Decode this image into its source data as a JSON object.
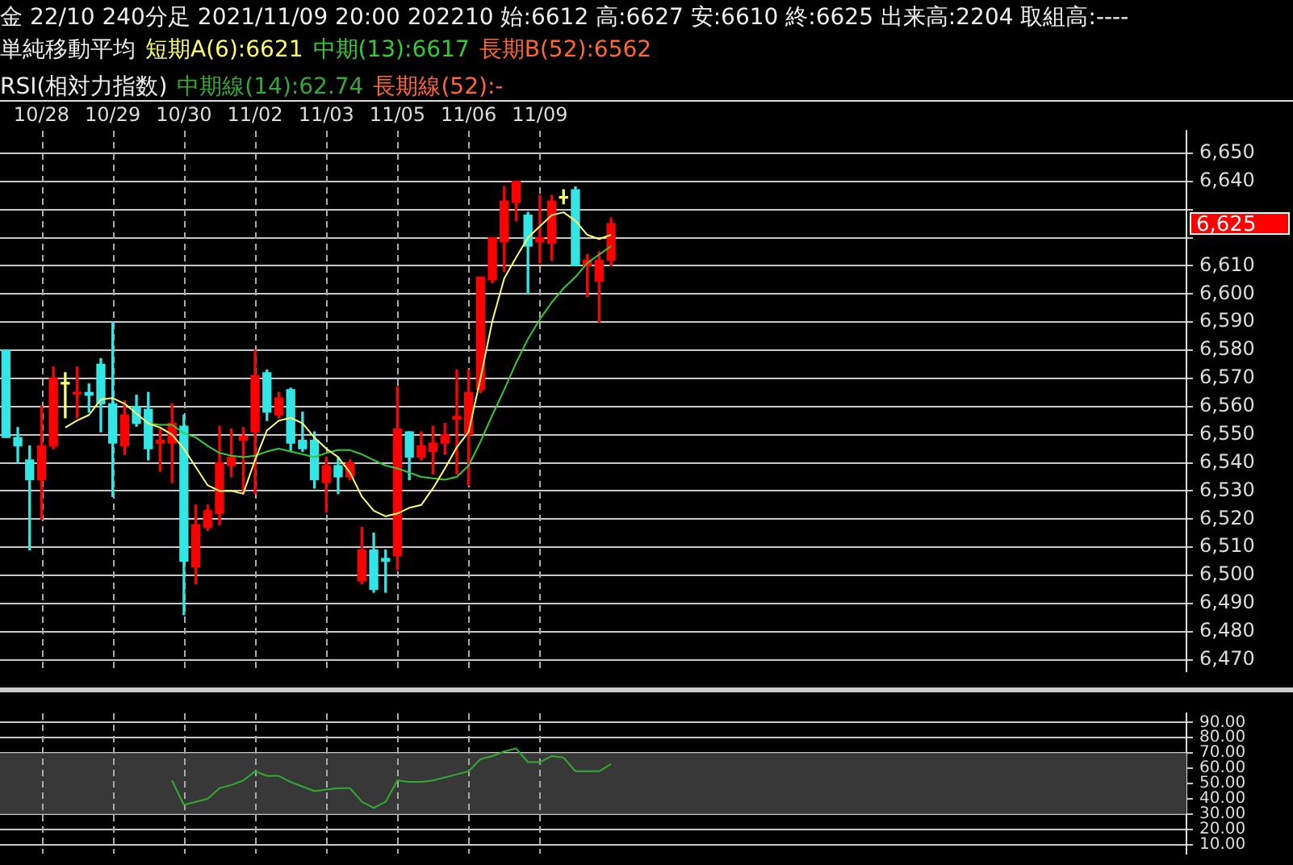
{
  "chart_data": [
    {
      "type": "candlestick",
      "title": "金 22/10 240分足 2021/11/09 20:00 202210 始:6612 高:6627 安:6610 終:6625 出来高:2204 取組高:----",
      "legend_title": "単純移動平均",
      "legend": "top left",
      "marker": "none",
      "grid": true,
      "categories": [
        null,
        null,
        null,
        "10/28",
        null,
        null,
        null,
        null,
        null,
        "10/29",
        null,
        null,
        null,
        null,
        null,
        "10/30",
        null,
        null,
        null,
        null,
        null,
        "11/02",
        null,
        null,
        null,
        null,
        null,
        "11/03",
        null,
        null,
        null,
        null,
        null,
        "11/05",
        null,
        null,
        null,
        null,
        null,
        "11/06",
        null,
        null,
        null,
        null,
        null,
        "11/09",
        null,
        null,
        null,
        null,
        null,
        null,
        null,
        null,
        null,
        null,
        null,
        null,
        null,
        null,
        null,
        null,
        null,
        null,
        null,
        null,
        null,
        null,
        null,
        null,
        null,
        null,
        null,
        null,
        null,
        null,
        null,
        null,
        null,
        null,
        null,
        null,
        null,
        null,
        null,
        null,
        null,
        null,
        null,
        null,
        null,
        null,
        null,
        null,
        null,
        null,
        null,
        null,
        null,
        null
      ],
      "ohlc": [
        [
          6580,
          6580,
          6549,
          6549
        ],
        [
          6549,
          6552.5,
          6540,
          6546
        ],
        [
          6541,
          6546,
          6509,
          6534
        ],
        [
          6534,
          6560,
          6520,
          6546
        ],
        [
          6546,
          6574,
          6545,
          6570
        ],
        [
          6568,
          6572,
          6556,
          6568
        ],
        [
          6564.5,
          6574,
          6556,
          6565
        ],
        [
          6565,
          6568,
          6558,
          6564
        ],
        [
          6575,
          6577,
          6551,
          6561
        ],
        [
          6561,
          6590,
          6528,
          6547
        ],
        [
          6546,
          6562,
          6543,
          6557
        ],
        [
          6560,
          6564,
          6553,
          6554
        ],
        [
          6559,
          6565,
          6541,
          6545
        ],
        [
          6547,
          6552,
          6537,
          6548
        ],
        [
          6547,
          6561,
          6533,
          6554
        ],
        [
          6553,
          6557,
          6486,
          6505
        ],
        [
          6503,
          6525,
          6497,
          6518
        ],
        [
          6517,
          6525,
          6516,
          6523
        ],
        [
          6522,
          6553,
          6518,
          6540
        ],
        [
          6539,
          6552,
          6535,
          6542
        ],
        [
          6548,
          6552.5,
          6529,
          6549.5
        ],
        [
          6551,
          6580,
          6529,
          6571
        ],
        [
          6572,
          6573,
          6555,
          6558
        ],
        [
          6557,
          6565,
          6556,
          6563
        ],
        [
          6566,
          6566.5,
          6544,
          6547
        ],
        [
          6548,
          6558,
          6544,
          6545
        ],
        [
          6548,
          6551,
          6531,
          6534
        ],
        [
          6533,
          6542,
          6522.5,
          6539
        ],
        [
          6539,
          6542,
          6529,
          6535
        ],
        [
          6535,
          6541,
          6534,
          6540
        ],
        [
          6498,
          6517,
          6497,
          6509
        ],
        [
          6509,
          6515,
          6494,
          6495
        ],
        [
          6506,
          6509,
          6494,
          6505
        ],
        [
          6507,
          6567,
          6502,
          6552
        ],
        [
          6551,
          6551,
          6534,
          6542
        ],
        [
          6542,
          6551,
          6541,
          6546
        ],
        [
          6544,
          6553,
          6536,
          6547
        ],
        [
          6547,
          6554,
          6543,
          6550
        ],
        [
          6555.5,
          6573,
          6536,
          6556.5
        ],
        [
          6550,
          6573,
          6532,
          6565
        ],
        [
          6566,
          6606,
          6565,
          6606
        ],
        [
          6605,
          6620,
          6604,
          6620
        ],
        [
          6618.5,
          6638,
          6608,
          6633
        ],
        [
          6632.5,
          6640,
          6626,
          6640
        ],
        [
          6628,
          6629,
          6600,
          6617
        ],
        [
          6618.5,
          6635,
          6611,
          6620
        ],
        [
          6618,
          6635,
          6612,
          6633
        ],
        [
          6634,
          6637,
          6632,
          6634
        ],
        [
          6637,
          6638,
          6610,
          6610
        ],
        [
          6610,
          6614,
          6599,
          6612
        ],
        [
          6604.5,
          6615,
          6590,
          6612
        ],
        [
          6612,
          6627,
          6610,
          6625
        ],
        null,
        null,
        null,
        null,
        null,
        null,
        null,
        null,
        null,
        null,
        null,
        null,
        null,
        null,
        null,
        null,
        null,
        null,
        null,
        null,
        null,
        null,
        null,
        null,
        null,
        null,
        null,
        null,
        null,
        null,
        null,
        null,
        null,
        null,
        null,
        null,
        null,
        null,
        null,
        null,
        null,
        null,
        null,
        null,
        null,
        null,
        null,
        null
      ],
      "colors": [
        "#33e6e6",
        "#33e6e6",
        "#33e6e6",
        "#ff0000",
        "#ff0000",
        "#ffff66",
        "#ff0000",
        "#33e6e6",
        "#33e6e6",
        "#33e6e6",
        "#ff0000",
        "#33e6e6",
        "#33e6e6",
        "#ff0000",
        "#ff0000",
        "#33e6e6",
        "#ff0000",
        "#ff0000",
        "#ff0000",
        "#ff0000",
        "#ff0000",
        "#ff0000",
        "#33e6e6",
        "#ff0000",
        "#33e6e6",
        "#33e6e6",
        "#33e6e6",
        "#ff0000",
        "#33e6e6",
        "#ff0000",
        "#ff0000",
        "#33e6e6",
        "#33e6e6",
        "#ff0000",
        "#33e6e6",
        "#ff0000",
        "#ff0000",
        "#ff0000",
        "#ff0000",
        "#ff0000",
        "#ff0000",
        "#ff0000",
        "#ff0000",
        "#ff0000",
        "#33e6e6",
        "#ff0000",
        "#ff0000",
        "#ffff66",
        "#33e6e6",
        "#ff0000",
        "#ff0000",
        "#ff0000",
        null,
        null,
        null,
        null,
        null,
        null,
        null,
        null,
        null,
        null,
        null,
        null,
        null,
        null,
        null,
        null,
        null,
        null,
        null,
        null,
        null,
        null,
        null,
        null,
        null,
        null,
        null,
        null,
        null,
        null,
        null,
        null,
        null,
        null,
        null,
        null,
        null,
        null,
        null,
        null,
        null,
        null,
        null,
        null,
        null,
        null,
        null,
        null
      ],
      "series": [
        {
          "name": "短期A(6):6621",
          "type": "line",
          "color": "#ffff66",
          "values": [
            null,
            null,
            null,
            null,
            null,
            6552.5,
            6555,
            6557,
            6562.5,
            6563,
            6561,
            6557.5,
            6554,
            6552.5,
            6550,
            6545,
            6538.5,
            6532,
            6530,
            6530,
            6529,
            6541,
            6551.5,
            6555,
            6556,
            6554,
            6549,
            6545,
            6542,
            6536.5,
            6528,
            6523,
            6521,
            6522,
            6524,
            6525,
            6531,
            6538,
            6545.5,
            6551,
            6570,
            6590.5,
            6605.5,
            6613,
            6620,
            6624,
            6628,
            6629,
            6626,
            6621,
            6619.5,
            6621,
            null,
            null,
            null,
            null,
            null,
            null,
            null,
            null,
            null,
            null,
            null,
            null,
            null,
            null,
            null,
            null,
            null,
            null,
            null,
            null,
            null,
            null,
            null,
            null,
            null,
            null,
            null,
            null,
            null,
            null,
            null,
            null,
            null,
            null,
            null,
            null,
            null,
            null,
            null,
            null,
            null,
            null,
            null,
            null,
            null,
            null,
            null,
            null
          ]
        },
        {
          "name": "中期(13):6617",
          "type": "line",
          "color": "#33cc33",
          "values": [
            null,
            null,
            null,
            null,
            null,
            null,
            null,
            null,
            null,
            null,
            null,
            null,
            6554,
            6553.5,
            6553.5,
            6550.5,
            6549,
            6546,
            6543.5,
            6542.5,
            6542,
            6542.5,
            6544,
            6545,
            6544,
            6543,
            6542,
            6543.5,
            6544.5,
            6544.5,
            6543,
            6541,
            6539,
            6538,
            6536.5,
            6535,
            6534.5,
            6534,
            6535,
            6539,
            6547.5,
            6557,
            6566,
            6575.5,
            6584,
            6591,
            6597,
            6602,
            6606,
            6611,
            6614,
            6617,
            null,
            null,
            null,
            null,
            null,
            null,
            null,
            null,
            null,
            null,
            null,
            null,
            null,
            null,
            null,
            null,
            null,
            null,
            null,
            null,
            null,
            null,
            null,
            null,
            null,
            null,
            null,
            null,
            null,
            null,
            null,
            null,
            null,
            null,
            null,
            null,
            null,
            null,
            null,
            null,
            null,
            null,
            null,
            null,
            null,
            null,
            null,
            null
          ]
        },
        {
          "name": "長期B(52):6562",
          "type": "line",
          "color": "#ff6633",
          "values": [
            null,
            null,
            null,
            null,
            null,
            null,
            null,
            null,
            null,
            null,
            null,
            null,
            null,
            null,
            null,
            null,
            null,
            null,
            null,
            null,
            null,
            null,
            null,
            null,
            null,
            null,
            null,
            null,
            null,
            null,
            null,
            null,
            null,
            null,
            null,
            null,
            null,
            null,
            null,
            null,
            null,
            null,
            null,
            null,
            null,
            null,
            null,
            null,
            null,
            null,
            null,
            null,
            null,
            null,
            null,
            null,
            null,
            null,
            null,
            null,
            null,
            null,
            null,
            null,
            null,
            null,
            null,
            null,
            null,
            null,
            null,
            null,
            null,
            null,
            null,
            null,
            null,
            null,
            null,
            null,
            null,
            null,
            null,
            null,
            null,
            null,
            null,
            null,
            null,
            null,
            null,
            null,
            null,
            null,
            null,
            null,
            null,
            null,
            null,
            null
          ]
        }
      ],
      "annotations": [
        "6,625"
      ],
      "ylim": [
        6466,
        6658
      ],
      "yticks": [
        {
          "value": 6470,
          "label": "6,470"
        },
        {
          "value": 6480,
          "label": "6,480"
        },
        {
          "value": 6490,
          "label": "6,490"
        },
        {
          "value": 6500,
          "label": "6,500"
        },
        {
          "value": 6510,
          "label": "6,510"
        },
        {
          "value": 6520,
          "label": "6,520"
        },
        {
          "value": 6530,
          "label": "6,530"
        },
        {
          "value": 6540,
          "label": "6,540"
        },
        {
          "value": 6550,
          "label": "6,550"
        },
        {
          "value": 6560,
          "label": "6,560"
        },
        {
          "value": 6570,
          "label": "6,570"
        },
        {
          "value": 6580,
          "label": "6,580"
        },
        {
          "value": 6590,
          "label": "6,590"
        },
        {
          "value": 6600,
          "label": "6,600"
        },
        {
          "value": 6610,
          "label": "6,610"
        },
        {
          "value": 6620,
          "label": null
        },
        {
          "value": 6630,
          "label": null
        },
        {
          "value": 6640,
          "label": "6,640"
        },
        {
          "value": 6650,
          "label": "6,650"
        }
      ]
    },
    {
      "type": "line",
      "legend_title": "RSI(相対力指数)",
      "legend": "top left",
      "marker": "none",
      "grid": true,
      "tick_labels": "y",
      "categories": [
        null,
        null,
        null,
        null,
        null,
        null,
        null,
        null,
        null,
        null,
        null,
        null,
        null,
        null,
        null,
        null,
        null,
        null,
        null,
        null,
        null,
        null,
        null,
        null,
        null,
        null,
        null,
        null,
        null,
        null,
        null,
        null,
        null,
        null,
        null,
        null,
        null,
        null,
        null,
        null,
        null,
        null,
        null,
        null,
        null,
        null,
        null,
        null,
        null,
        null,
        null,
        null,
        null,
        null,
        null,
        null,
        null,
        null,
        null,
        null,
        null,
        null,
        null,
        null,
        null,
        null,
        null,
        null,
        null,
        null,
        null,
        null,
        null,
        null,
        null,
        null,
        null,
        null,
        null,
        null,
        null,
        null,
        null,
        null,
        null,
        null,
        null,
        null,
        null,
        null,
        null,
        null,
        null,
        null,
        null,
        null,
        null,
        null,
        null,
        null
      ],
      "series": [
        {
          "name": "中期線(14):62.74",
          "color": "#33aa33",
          "values": [
            null,
            null,
            null,
            null,
            null,
            null,
            null,
            null,
            null,
            null,
            null,
            null,
            null,
            null,
            52,
            36,
            38,
            40,
            47,
            49,
            52,
            58,
            55,
            55,
            51,
            48,
            45,
            46,
            47,
            47,
            38,
            34,
            38,
            52,
            51,
            51,
            52,
            54,
            56,
            58,
            66,
            68,
            71,
            73,
            64,
            64,
            68,
            67,
            58,
            58,
            58,
            62.74,
            null,
            null,
            null,
            null,
            null,
            null,
            null,
            null,
            null,
            null,
            null,
            null,
            null,
            null,
            null,
            null,
            null,
            null,
            null,
            null,
            null,
            null,
            null,
            null,
            null,
            null,
            null,
            null,
            null,
            null,
            null,
            null,
            null,
            null,
            null,
            null,
            null,
            null,
            null,
            null,
            null,
            null,
            null,
            null,
            null,
            null,
            null,
            null
          ]
        },
        {
          "name": "長期線(52):-",
          "color": "#ff6633",
          "values": [
            null,
            null,
            null,
            null,
            null,
            null,
            null,
            null,
            null,
            null,
            null,
            null,
            null,
            null,
            null,
            null,
            null,
            null,
            null,
            null,
            null,
            null,
            null,
            null,
            null,
            null,
            null,
            null,
            null,
            null,
            null,
            null,
            null,
            null,
            null,
            null,
            null,
            null,
            null,
            null,
            null,
            null,
            null,
            null,
            null,
            null,
            null,
            null,
            null,
            null,
            null,
            null,
            null,
            null,
            null,
            null,
            null,
            null,
            null,
            null,
            null,
            null,
            null,
            null,
            null,
            null,
            null,
            null,
            null,
            null,
            null,
            null,
            null,
            null,
            null,
            null,
            null,
            null,
            null,
            null,
            null,
            null,
            null,
            null,
            null,
            null,
            null,
            null,
            null,
            null,
            null,
            null,
            null,
            null,
            null,
            null,
            null,
            null,
            null,
            null
          ]
        }
      ],
      "ylim": [
        4,
        96
      ],
      "yticks": [
        {
          "value": 10,
          "label": "10.00"
        },
        {
          "value": 20,
          "label": "20.00"
        },
        {
          "value": 30,
          "label": "30.00"
        },
        {
          "value": 40,
          "label": "40.00"
        },
        {
          "value": 50,
          "label": "50.00"
        },
        {
          "value": 60,
          "label": "60.00"
        },
        {
          "value": 70,
          "label": "70.00"
        },
        {
          "value": 80,
          "label": "80.00"
        },
        {
          "value": 90,
          "label": "90.00"
        }
      ],
      "bands": [
        {
          "axis": "y",
          "from": 30,
          "to": 70,
          "color": "#383838"
        }
      ]
    }
  ]
}
